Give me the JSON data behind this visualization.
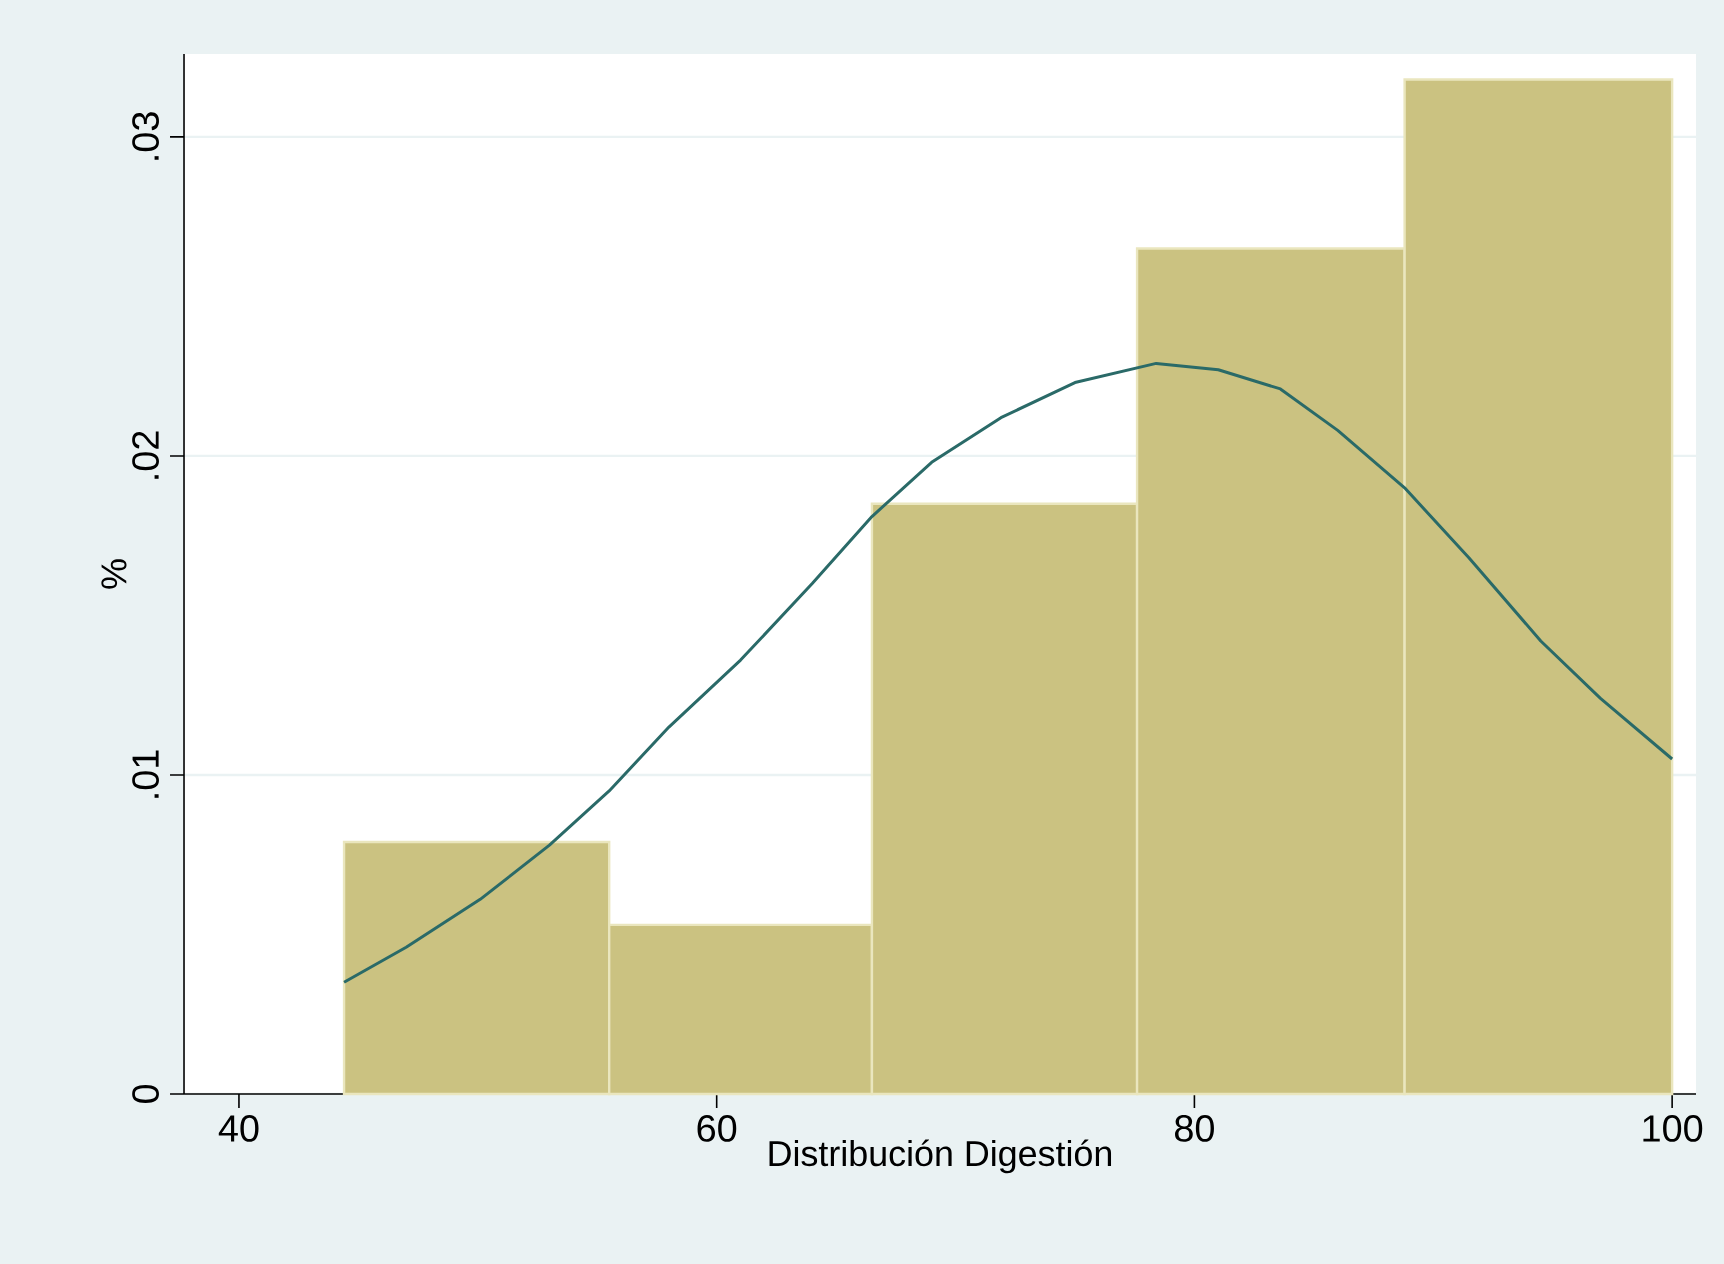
{
  "chart_data": {
    "type": "histogram",
    "xlabel": "Distribución Digestión",
    "ylabel": "%",
    "bins": [
      44.4,
      55.5,
      66.5,
      77.6,
      88.8,
      100
    ],
    "values": [
      0.0079,
      0.0053,
      0.0185,
      0.0265,
      0.0318
    ],
    "color": "#cbc281",
    "series": [
      {
        "type": "line",
        "color": "#2a6a68",
        "x": [
          44.4,
          47,
          50.1,
          53,
          55.5,
          58,
          61.0,
          64,
          66.5,
          69,
          71.9,
          75,
          78.4,
          81,
          83.6,
          86,
          88.8,
          91.5,
          94.5,
          97,
          100
        ],
        "values": [
          0.0035,
          0.0046,
          0.0061,
          0.0078,
          0.0095,
          0.0115,
          0.0136,
          0.016,
          0.0181,
          0.0198,
          0.0212,
          0.0223,
          0.0229,
          0.0227,
          0.0221,
          0.0208,
          0.019,
          0.0168,
          0.0142,
          0.0124,
          0.0105
        ]
      }
    ],
    "xlim": [
      37.7,
      101
    ],
    "ylim": [
      0,
      0.0326
    ],
    "xticks": [
      40,
      60,
      80,
      100
    ],
    "yticks": [
      0,
      {
        "value": 0.01,
        "label": ".01"
      },
      {
        "value": 0.02,
        "label": ".02"
      },
      {
        "value": 0.03,
        "label": ".03"
      }
    ],
    "grid": "y"
  }
}
